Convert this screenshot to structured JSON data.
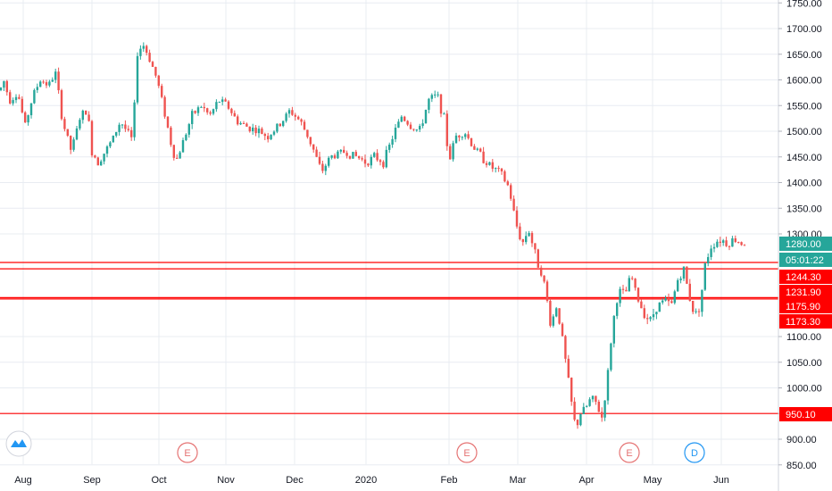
{
  "colors": {
    "up": "#26a69a",
    "down": "#ef5350",
    "level": "#ff0000",
    "grid": "#e8ecf2",
    "axis_text": "#131722",
    "price_tag": "#26a69a",
    "event_e": "#e57373",
    "event_d": "#2196f3"
  },
  "chart_data": {
    "type": "candlestick",
    "y_axis": {
      "position": "right",
      "ylim": [
        840,
        1760
      ],
      "ticks": [
        "1750.00",
        "1700.00",
        "1650.00",
        "1600.00",
        "1550.00",
        "1500.00",
        "1450.00",
        "1400.00",
        "1350.00",
        "1300.00",
        "1100.00",
        "1050.00",
        "1000.00",
        "950.00",
        "900.00",
        "850.00"
      ]
    },
    "x_axis": {
      "ticks": [
        "Aug",
        "Sep",
        "Oct",
        "Nov",
        "Dec",
        "2020",
        "Feb",
        "Mar",
        "Apr",
        "May",
        "Jun"
      ]
    },
    "grid": true,
    "current_price_label": "1280.00",
    "countdown_label": "05:01:22",
    "horizontal_levels": [
      {
        "value": 1244.3,
        "label": "1244.30"
      },
      {
        "value": 1231.9,
        "label": "1231.90"
      },
      {
        "value": 1175.9,
        "label": "1175.90"
      },
      {
        "value": 1173.3,
        "label": "1173.30"
      },
      {
        "value": 950.1,
        "label": "950.10"
      }
    ],
    "events": [
      {
        "letter": "E",
        "month": "Oct",
        "kind": "earnings"
      },
      {
        "letter": "E",
        "month": "Feb",
        "kind": "earnings"
      },
      {
        "letter": "E",
        "month": "Apr",
        "kind": "earnings"
      },
      {
        "letter": "D",
        "month": "May",
        "kind": "dividend"
      }
    ],
    "price_path": [
      [
        0,
        1580
      ],
      [
        5,
        1600
      ],
      [
        10,
        1560
      ],
      [
        20,
        1575
      ],
      [
        28,
        1510
      ],
      [
        37,
        1570
      ],
      [
        45,
        1600
      ],
      [
        55,
        1590
      ],
      [
        62,
        1615
      ],
      [
        70,
        1520
      ],
      [
        80,
        1460
      ],
      [
        90,
        1530
      ],
      [
        98,
        1540
      ],
      [
        103,
        1460
      ],
      [
        110,
        1440
      ],
      [
        125,
        1480
      ],
      [
        135,
        1520
      ],
      [
        142,
        1500
      ],
      [
        149,
        1480
      ],
      [
        153,
        1650
      ],
      [
        160,
        1670
      ],
      [
        168,
        1640
      ],
      [
        176,
        1600
      ],
      [
        184,
        1540
      ],
      [
        191,
        1480
      ],
      [
        197,
        1440
      ],
      [
        205,
        1480
      ],
      [
        215,
        1530
      ],
      [
        225,
        1550
      ],
      [
        235,
        1530
      ],
      [
        245,
        1560
      ],
      [
        255,
        1550
      ],
      [
        265,
        1520
      ],
      [
        275,
        1510
      ],
      [
        290,
        1500
      ],
      [
        300,
        1490
      ],
      [
        312,
        1510
      ],
      [
        325,
        1540
      ],
      [
        336,
        1520
      ],
      [
        345,
        1490
      ],
      [
        352,
        1460
      ],
      [
        360,
        1420
      ],
      [
        370,
        1450
      ],
      [
        385,
        1460
      ],
      [
        400,
        1450
      ],
      [
        410,
        1440
      ],
      [
        420,
        1450
      ],
      [
        430,
        1440
      ],
      [
        440,
        1490
      ],
      [
        450,
        1530
      ],
      [
        460,
        1510
      ],
      [
        470,
        1500
      ],
      [
        480,
        1560
      ],
      [
        490,
        1570
      ],
      [
        498,
        1520
      ],
      [
        503,
        1440
      ],
      [
        510,
        1490
      ],
      [
        520,
        1500
      ],
      [
        530,
        1470
      ],
      [
        540,
        1450
      ],
      [
        550,
        1430
      ],
      [
        560,
        1420
      ],
      [
        570,
        1390
      ],
      [
        578,
        1320
      ],
      [
        585,
        1280
      ],
      [
        592,
        1310
      ],
      [
        598,
        1270
      ],
      [
        603,
        1240
      ],
      [
        607,
        1225
      ],
      [
        612,
        1180
      ],
      [
        617,
        1120
      ],
      [
        623,
        1160
      ],
      [
        628,
        1120
      ],
      [
        632,
        1070
      ],
      [
        637,
        1010
      ],
      [
        641,
        960
      ],
      [
        645,
        920
      ],
      [
        650,
        950
      ],
      [
        656,
        960
      ],
      [
        662,
        980
      ],
      [
        668,
        970
      ],
      [
        674,
        940
      ],
      [
        680,
        1010
      ],
      [
        686,
        1120
      ],
      [
        693,
        1190
      ],
      [
        700,
        1180
      ],
      [
        707,
        1220
      ],
      [
        713,
        1180
      ],
      [
        720,
        1150
      ],
      [
        728,
        1130
      ],
      [
        736,
        1160
      ],
      [
        745,
        1170
      ],
      [
        752,
        1160
      ],
      [
        759,
        1210
      ],
      [
        766,
        1230
      ],
      [
        772,
        1180
      ],
      [
        778,
        1140
      ],
      [
        784,
        1160
      ],
      [
        790,
        1240
      ],
      [
        796,
        1275
      ],
      [
        802,
        1285
      ],
      [
        808,
        1290
      ],
      [
        815,
        1280
      ],
      [
        822,
        1290
      ],
      [
        828,
        1285
      ],
      [
        835,
        1280
      ]
    ]
  }
}
